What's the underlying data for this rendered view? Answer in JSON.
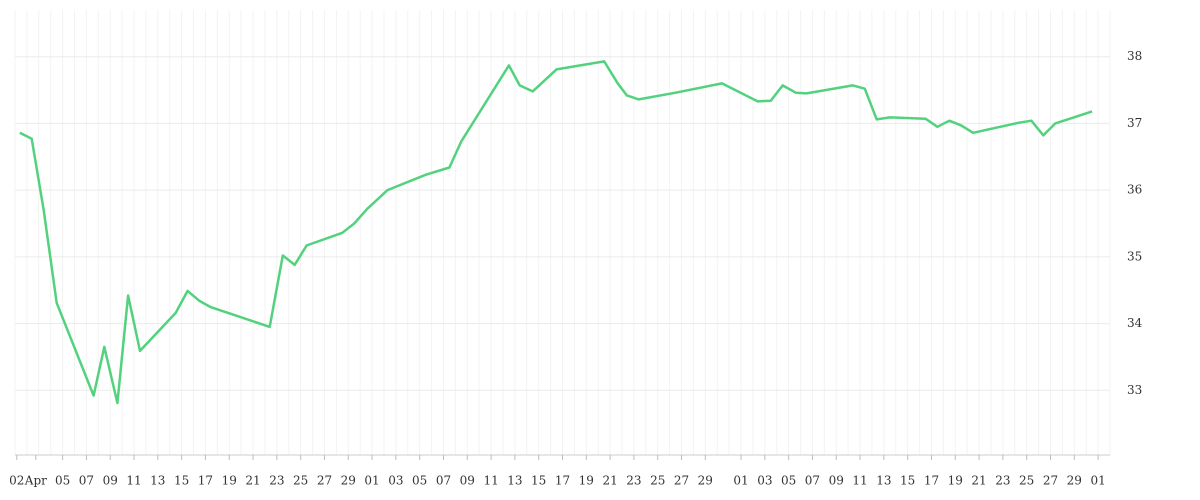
{
  "chart_data": {
    "type": "line",
    "color": "#52d27e",
    "grid": true,
    "xlim": [
      0,
      92
    ],
    "ylim": [
      32.03,
      38.7
    ],
    "yticks": [
      33,
      34,
      35,
      36,
      37,
      38
    ],
    "xticks": [
      {
        "value": 0.15,
        "label": "02"
      },
      {
        "value": 1.75,
        "label": "Apr"
      },
      {
        "value": 4,
        "label": "05"
      },
      {
        "value": 6,
        "label": "07"
      },
      {
        "value": 8,
        "label": "09"
      },
      {
        "value": 10,
        "label": "11"
      },
      {
        "value": 12,
        "label": "13"
      },
      {
        "value": 14,
        "label": "15"
      },
      {
        "value": 16,
        "label": "17"
      },
      {
        "value": 18,
        "label": "19"
      },
      {
        "value": 20,
        "label": "21"
      },
      {
        "value": 22,
        "label": "23"
      },
      {
        "value": 24,
        "label": "25"
      },
      {
        "value": 26,
        "label": "27"
      },
      {
        "value": 28,
        "label": "29"
      },
      {
        "value": 30,
        "label": "01"
      },
      {
        "value": 32,
        "label": "03"
      },
      {
        "value": 34,
        "label": "05"
      },
      {
        "value": 36,
        "label": "07"
      },
      {
        "value": 38,
        "label": "09"
      },
      {
        "value": 40,
        "label": "11"
      },
      {
        "value": 42,
        "label": "13"
      },
      {
        "value": 44,
        "label": "15"
      },
      {
        "value": 46,
        "label": "17"
      },
      {
        "value": 48,
        "label": "19"
      },
      {
        "value": 50,
        "label": "21"
      },
      {
        "value": 52,
        "label": "23"
      },
      {
        "value": 54,
        "label": "25"
      },
      {
        "value": 56,
        "label": "27"
      },
      {
        "value": 58,
        "label": "29"
      },
      {
        "value": 61,
        "label": "01"
      },
      {
        "value": 63,
        "label": "03"
      },
      {
        "value": 65,
        "label": "05"
      },
      {
        "value": 67,
        "label": "07"
      },
      {
        "value": 69,
        "label": "09"
      },
      {
        "value": 71,
        "label": "11"
      },
      {
        "value": 73,
        "label": "13"
      },
      {
        "value": 75,
        "label": "15"
      },
      {
        "value": 77,
        "label": "17"
      },
      {
        "value": 79,
        "label": "19"
      },
      {
        "value": 81,
        "label": "21"
      },
      {
        "value": 83,
        "label": "23"
      },
      {
        "value": 85,
        "label": "25"
      },
      {
        "value": 87,
        "label": "27"
      },
      {
        "value": 89,
        "label": "29"
      },
      {
        "value": 91,
        "label": "01"
      }
    ],
    "x": [
      0.4,
      1.4,
      2.4,
      3.5,
      6.6,
      7.5,
      8.6,
      9.5,
      10.5,
      13.5,
      14.5,
      15.5,
      16.4,
      21.4,
      22.5,
      23.5,
      24.5,
      27.5,
      28.5,
      29.6,
      31.3,
      34.5,
      36.5,
      37.5,
      41.5,
      42.4,
      43.5,
      45.5,
      49.5,
      50.6,
      51.4,
      52.4,
      55.5,
      59.4,
      62.4,
      63.5,
      64.5,
      65.6,
      66.5,
      70.4,
      71.4,
      72.4,
      73.5,
      76.5,
      77.5,
      78.5,
      79.5,
      80.5,
      84.3,
      85.4,
      86.4,
      87.4,
      90.5
    ],
    "values": [
      36.86,
      36.77,
      35.71,
      34.31,
      32.92,
      33.65,
      32.81,
      34.42,
      33.59,
      34.16,
      34.49,
      34.34,
      34.25,
      33.95,
      35.02,
      34.88,
      35.17,
      35.36,
      35.5,
      35.72,
      36.0,
      36.23,
      36.34,
      36.73,
      37.87,
      37.57,
      37.48,
      37.81,
      37.93,
      37.61,
      37.42,
      37.36,
      37.46,
      37.6,
      37.33,
      37.34,
      37.57,
      37.46,
      37.45,
      37.57,
      37.52,
      37.06,
      37.09,
      37.07,
      36.95,
      37.04,
      36.97,
      36.86,
      37.01,
      37.04,
      36.82,
      37.0,
      37.18
    ]
  }
}
